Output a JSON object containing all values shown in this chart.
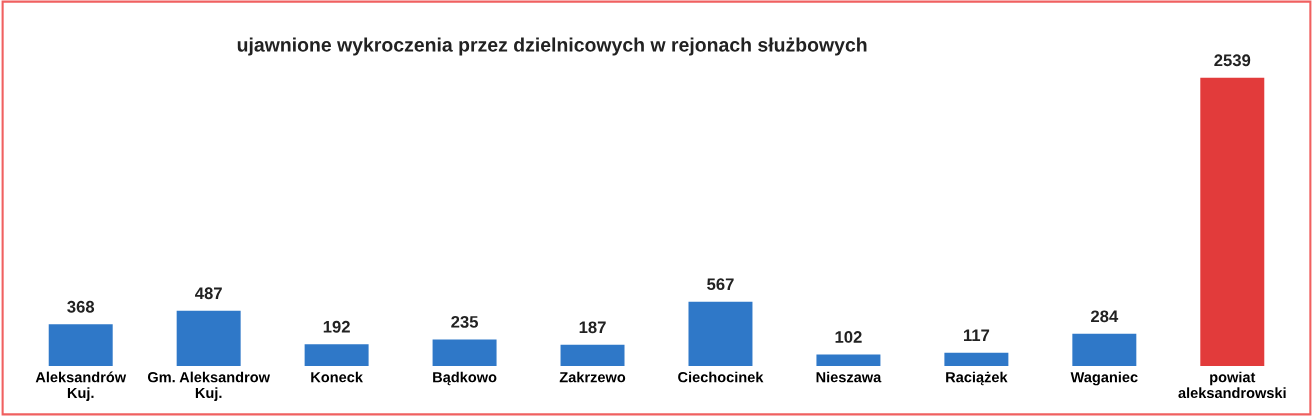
{
  "chart_data": {
    "type": "bar",
    "title": "ujawnione wykroczenia przez dzielnicowych w rejonach służbowych",
    "categories": [
      "Aleksandrów Kuj.",
      "Gm. Aleksandrow Kuj.",
      "Koneck",
      "Bądkowo",
      "Zakrzewo",
      "Ciechocinek",
      "Nieszawa",
      "Raciążek",
      "Waganiec",
      "powiat aleksandrowski"
    ],
    "values": [
      368,
      487,
      192,
      235,
      187,
      567,
      102,
      117,
      284,
      2539
    ],
    "colors": [
      "#2f78c8",
      "#2f78c8",
      "#2f78c8",
      "#2f78c8",
      "#2f78c8",
      "#2f78c8",
      "#2f78c8",
      "#2f78c8",
      "#2f78c8",
      "#e23b3b"
    ],
    "data_labels": true,
    "grid": false,
    "legend": false
  }
}
